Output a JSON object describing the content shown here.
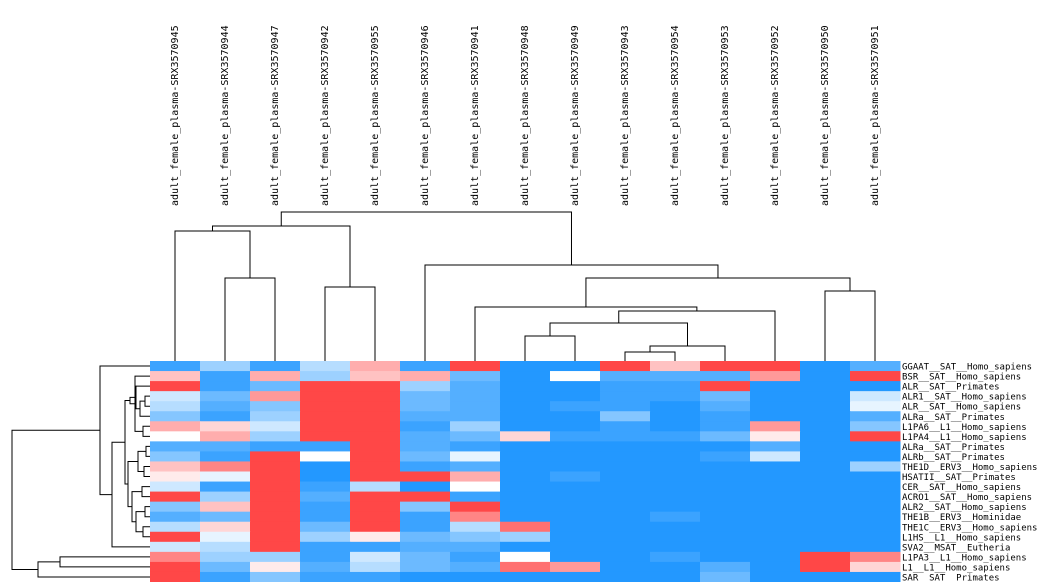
{
  "chart_data": {
    "type": "heatmap",
    "title": "",
    "xlabel": "",
    "ylabel": "",
    "colormap": {
      "low": "#0a8cff",
      "mid": "#ffffff",
      "high": "#ff3333"
    },
    "columns": [
      "adult_female_plasma-SRX3570945",
      "adult_female_plasma-SRX3570944",
      "adult_female_plasma-SRX3570947",
      "adult_female_plasma-SRX3570942",
      "adult_female_plasma-SRX3570955",
      "adult_female_plasma-SRX3570946",
      "adult_female_plasma-SRX3570941",
      "adult_female_plasma-SRX3570948",
      "adult_female_plasma-SRX3570949",
      "adult_female_plasma-SRX3570943",
      "adult_female_plasma-SRX3570954",
      "adult_female_plasma-SRX3570953",
      "adult_female_plasma-SRX3570952",
      "adult_female_plasma-SRX3570950",
      "adult_female_plasma-SRX3570951"
    ],
    "rows": [
      "GGAAT__SAT__Homo_sapiens",
      "BSR__SAT__Homo_sapiens",
      "ALR__SAT__Primates",
      "ALR1__SAT__Homo_sapiens",
      "ALR__SAT__Homo_sapiens",
      "ALRa__SAT__Primates",
      "L1PA6__L1__Homo_sapiens",
      "L1PA4__L1__Homo_sapiens",
      "ALRa__SAT__Primates",
      "ALRb__SAT__Primates",
      "THE1D__ERV3__Homo_sapiens",
      "HSATII__SAT__Primates",
      "CER__SAT__Homo_sapiens",
      "ACRO1__SAT__Homo_sapiens",
      "ALR2__SAT__Homo_sapiens",
      "THE1B__ERV3__Hominidae",
      "THE1C__ERV3__Homo_sapiens",
      "L1HS__L1__Homo_sapiens",
      "SVA2__MSAT__Eutheria",
      "L1PA3__L1__Homo_sapiens",
      "L1__L1__Homo_sapiens",
      "SAR__SAT__Primates"
    ],
    "values": [
      [
        0.1,
        0.3,
        0.1,
        0.35,
        0.7,
        0.1,
        0.95,
        0.05,
        0.05,
        0.95,
        0.65,
        0.95,
        0.95,
        0.05,
        0.15
      ],
      [
        0.65,
        0.1,
        0.7,
        0.3,
        0.65,
        0.7,
        0.2,
        0.05,
        0.5,
        0.15,
        0.15,
        0.15,
        0.75,
        0.05,
        0.95
      ],
      [
        0.95,
        0.1,
        0.2,
        0.95,
        0.95,
        0.3,
        0.15,
        0.05,
        0.05,
        0.1,
        0.1,
        0.95,
        0.05,
        0.05,
        0.05
      ],
      [
        0.4,
        0.2,
        0.75,
        0.95,
        0.95,
        0.2,
        0.15,
        0.05,
        0.05,
        0.1,
        0.1,
        0.2,
        0.05,
        0.05,
        0.4
      ],
      [
        0.35,
        0.15,
        0.25,
        0.95,
        0.95,
        0.2,
        0.15,
        0.05,
        0.1,
        0.1,
        0.05,
        0.15,
        0.05,
        0.05,
        0.45
      ],
      [
        0.25,
        0.1,
        0.3,
        0.95,
        0.95,
        0.15,
        0.15,
        0.05,
        0.05,
        0.25,
        0.05,
        0.1,
        0.05,
        0.05,
        0.15
      ],
      [
        0.7,
        0.6,
        0.4,
        0.95,
        0.95,
        0.1,
        0.3,
        0.05,
        0.05,
        0.1,
        0.05,
        0.1,
        0.75,
        0.05,
        0.25
      ],
      [
        0.5,
        0.7,
        0.3,
        0.95,
        0.95,
        0.15,
        0.2,
        0.6,
        0.1,
        0.1,
        0.1,
        0.2,
        0.55,
        0.05,
        0.95
      ],
      [
        0.15,
        0.15,
        0.1,
        0.1,
        0.95,
        0.15,
        0.1,
        0.05,
        0.05,
        0.05,
        0.05,
        0.05,
        0.15,
        0.05,
        0.05
      ],
      [
        0.25,
        0.1,
        0.95,
        0.5,
        0.95,
        0.2,
        0.45,
        0.05,
        0.05,
        0.05,
        0.05,
        0.1,
        0.4,
        0.05,
        0.05
      ],
      [
        0.65,
        0.8,
        0.95,
        0.05,
        0.95,
        0.1,
        0.15,
        0.05,
        0.05,
        0.05,
        0.05,
        0.05,
        0.05,
        0.05,
        0.3
      ],
      [
        0.55,
        0.45,
        0.95,
        0.05,
        0.95,
        0.95,
        0.7,
        0.05,
        0.1,
        0.05,
        0.05,
        0.05,
        0.05,
        0.05,
        0.05
      ],
      [
        0.4,
        0.1,
        0.95,
        0.1,
        0.35,
        0.05,
        0.5,
        0.05,
        0.05,
        0.05,
        0.05,
        0.05,
        0.05,
        0.05,
        0.05
      ],
      [
        0.95,
        0.3,
        0.95,
        0.15,
        0.95,
        0.95,
        0.1,
        0.05,
        0.05,
        0.05,
        0.05,
        0.05,
        0.05,
        0.05,
        0.05
      ],
      [
        0.25,
        0.65,
        0.95,
        0.1,
        0.95,
        0.25,
        0.95,
        0.05,
        0.05,
        0.05,
        0.05,
        0.05,
        0.05,
        0.05,
        0.05
      ],
      [
        0.15,
        0.2,
        0.95,
        0.1,
        0.95,
        0.1,
        0.8,
        0.05,
        0.05,
        0.05,
        0.1,
        0.05,
        0.05,
        0.05,
        0.05
      ],
      [
        0.35,
        0.6,
        0.95,
        0.2,
        0.95,
        0.1,
        0.35,
        0.85,
        0.05,
        0.05,
        0.05,
        0.05,
        0.05,
        0.05,
        0.05
      ],
      [
        0.95,
        0.45,
        0.95,
        0.3,
        0.55,
        0.2,
        0.25,
        0.3,
        0.05,
        0.05,
        0.05,
        0.05,
        0.05,
        0.05,
        0.05
      ],
      [
        0.4,
        0.35,
        0.95,
        0.1,
        0.1,
        0.15,
        0.15,
        0.05,
        0.05,
        0.05,
        0.05,
        0.05,
        0.05,
        0.05,
        0.05
      ],
      [
        0.8,
        0.3,
        0.3,
        0.1,
        0.4,
        0.2,
        0.1,
        0.5,
        0.05,
        0.05,
        0.1,
        0.05,
        0.05,
        0.95,
        0.8
      ],
      [
        0.95,
        0.2,
        0.55,
        0.15,
        0.35,
        0.2,
        0.15,
        0.85,
        0.75,
        0.05,
        0.05,
        0.15,
        0.05,
        0.95,
        0.6
      ],
      [
        0.95,
        0.1,
        0.25,
        0.1,
        0.1,
        0.05,
        0.05,
        0.05,
        0.05,
        0.05,
        0.05,
        0.2,
        0.05,
        0.05,
        0.05
      ]
    ],
    "col_dendrogram": [
      [
        150,
        240,
        100,
        240
      ],
      [
        225,
        288,
        260,
        288
      ],
      [
        325,
        355,
        260,
        260
      ],
      [
        175,
        290,
        175,
        240
      ],
      [
        475,
        545,
        311,
        311
      ],
      [
        628,
        675,
        352,
        352
      ],
      [
        652,
        702,
        363,
        363
      ],
      [
        525,
        600,
        336,
        336
      ],
      [
        563,
        677,
        323,
        323
      ],
      [
        545,
        620,
        311,
        311
      ],
      [
        500,
        583,
        300,
        300
      ],
      [
        825,
        875,
        291,
        291
      ],
      [
        541,
        850,
        278,
        278
      ],
      [
        425,
        696,
        265,
        265
      ],
      [
        211,
        280,
        231,
        230
      ],
      [
        232,
        560,
        230,
        210
      ]
    ],
    "row_dendrogram": [
      [
        0,
        35,
        100,
        5.5
      ],
      [
        100,
        125,
        130,
        380
      ],
      [
        40,
        45,
        130,
        150
      ],
      [
        150,
        50,
        160,
        150
      ],
      [
        250,
        200,
        5.5,
        5.5
      ]
    ]
  }
}
